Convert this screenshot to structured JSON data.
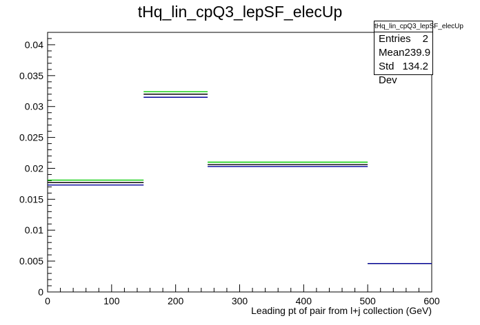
{
  "chart_data": {
    "type": "histogram",
    "title": "tHq_lin_cpQ3_lepSF_elecUp",
    "xlabel": "Leading pt of pair from l+j collection (GeV)",
    "ylabel": "",
    "xlim": [
      0,
      600
    ],
    "ylim": [
      0,
      0.042
    ],
    "x_ticks": [
      "0",
      "100",
      "200",
      "300",
      "400",
      "500",
      "600"
    ],
    "y_ticks": [
      "0",
      "0.005",
      "0.01",
      "0.015",
      "0.02",
      "0.025",
      "0.03",
      "0.035",
      "0.04"
    ],
    "bin_edges": [
      0,
      150,
      250,
      500,
      600
    ],
    "series": [
      {
        "color": "#00cc00",
        "values": [
          0.0181,
          0.0324,
          0.021,
          0.0046
        ]
      },
      {
        "color": "#000000",
        "values": [
          0.0177,
          0.032,
          0.0206,
          0.0046
        ]
      },
      {
        "color": "#000099",
        "values": [
          0.0173,
          0.0315,
          0.0203,
          0.0046
        ]
      }
    ],
    "stats": {
      "name": "tHq_lin_cpQ3_lepSF_elecUp",
      "rows": [
        {
          "label": "Entries",
          "value": "2"
        },
        {
          "label": "Mean",
          "value": "239.9"
        },
        {
          "label": "Std Dev",
          "value": "134.2"
        }
      ]
    }
  }
}
